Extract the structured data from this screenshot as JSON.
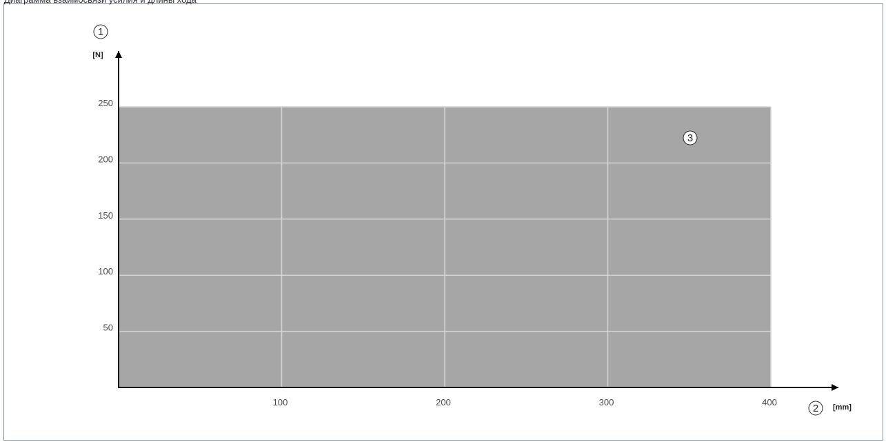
{
  "caption": "Диаграмма взаимосвязи усилия и длины хода",
  "chart_data": {
    "type": "area",
    "title": "",
    "x_unit": "[mm]",
    "y_unit": "[N]",
    "xlim": [
      0,
      400
    ],
    "ylim": [
      0,
      250
    ],
    "x_ticks": [
      100,
      200,
      300,
      400
    ],
    "y_ticks": [
      50,
      100,
      150,
      200,
      250
    ],
    "grid": true,
    "region": {
      "x": [
        0,
        400
      ],
      "y": [
        0,
        250
      ]
    },
    "callouts": {
      "y_axis": "1",
      "x_axis": "2",
      "region": "3"
    }
  },
  "colors": {
    "region_fill": "#a6a6a6",
    "grid": "#d4d4d4",
    "axis": "#000000",
    "frame": "#7f8ca6"
  }
}
